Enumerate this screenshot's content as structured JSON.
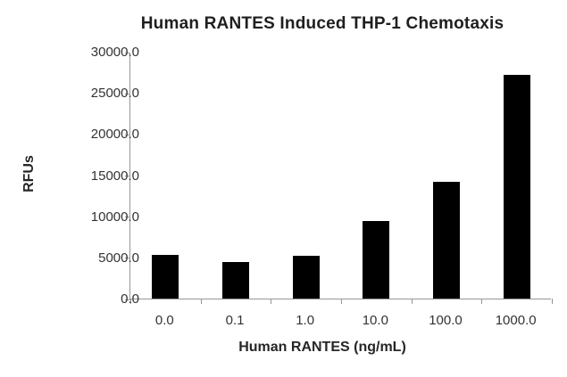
{
  "chart_data": {
    "type": "bar",
    "title": "Human RANTES Induced THP-1 Chemotaxis",
    "xlabel": "Human RANTES (ng/mL)",
    "ylabel": "RFUs",
    "categories": [
      "0.0",
      "0.1",
      "1.0",
      "10.0",
      "100.0",
      "1000.0"
    ],
    "values": [
      5300,
      4400,
      5200,
      9400,
      14200,
      27200
    ],
    "ylim": [
      0,
      30000
    ],
    "ytick_step": 5000,
    "ytick_labels": [
      "0.0",
      "5000.0",
      "10000.0",
      "15000.0",
      "20000.0",
      "25000.0",
      "30000.0"
    ],
    "grid": false,
    "legend": null,
    "colors": {
      "bar": "#000000",
      "axis_line": "#969696",
      "title_text": "#1f1f1f",
      "label_text": "#333333",
      "background": "#ffffff"
    }
  }
}
